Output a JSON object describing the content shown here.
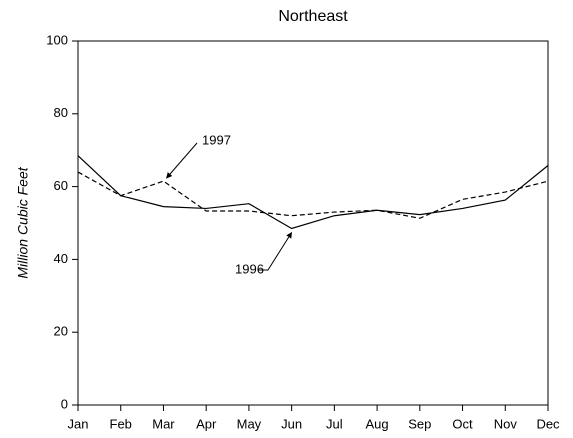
{
  "chart_data": {
    "type": "line",
    "title": "Northeast",
    "y_label": "Million Cubic Feet",
    "categories": [
      "Jan",
      "Feb",
      "Mar",
      "Apr",
      "May",
      "Jun",
      "Jul",
      "Aug",
      "Sep",
      "Oct",
      "Nov",
      "Dec"
    ],
    "series": [
      {
        "name": "1996",
        "color": "#000000",
        "dash": "solid",
        "values": [
          68.5,
          57.5,
          54.5,
          54,
          55.3,
          48.5,
          52,
          53.5,
          52.3,
          54,
          56.3,
          65.8
        ]
      },
      {
        "name": "1997",
        "color": "#000000",
        "dash": "dashed",
        "values": [
          64,
          57.5,
          61.5,
          53.3,
          53.3,
          52,
          53,
          53.5,
          51.3,
          56.5,
          58.5,
          61.5
        ]
      }
    ],
    "ylim": [
      0,
      100
    ],
    "yticks": [
      0,
      20,
      40,
      60,
      80,
      100
    ],
    "grid": false
  }
}
